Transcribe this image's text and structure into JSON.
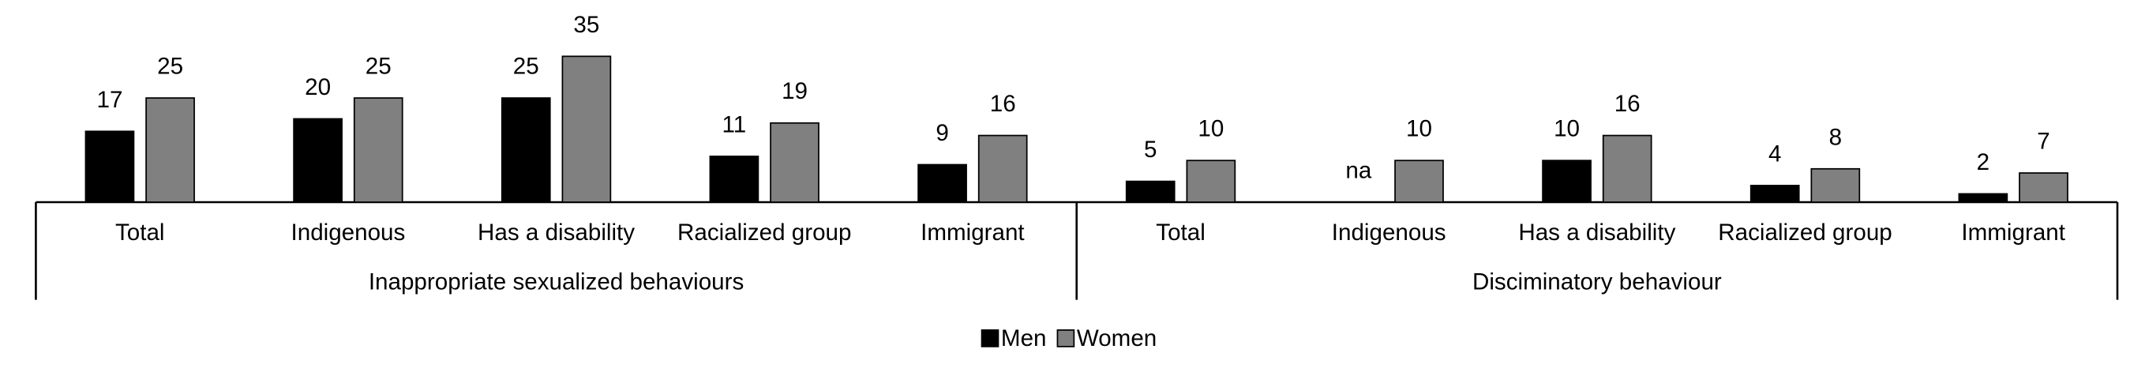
{
  "chart_data": {
    "type": "bar",
    "categories": [
      "Total",
      "Indigenous",
      "Has a disability",
      "Racialized group",
      "Immigrant",
      "Total",
      "Indigenous",
      "Has a disability",
      "Racialized group",
      "Immigrant"
    ],
    "category_groups": [
      "Inappropriate sexualized behaviours",
      "Disciminatory behaviour"
    ],
    "series": [
      {
        "name": "Men",
        "color": "#000000",
        "values": [
          17,
          20,
          25,
          11,
          9,
          5,
          null,
          10,
          4,
          2
        ],
        "value_labels": [
          null,
          null,
          null,
          null,
          null,
          null,
          "na",
          null,
          null,
          null
        ]
      },
      {
        "name": "Women",
        "color": "#808080",
        "values": [
          25,
          25,
          35,
          19,
          16,
          10,
          10,
          16,
          8,
          7
        ]
      }
    ],
    "legend": "bottom"
  }
}
